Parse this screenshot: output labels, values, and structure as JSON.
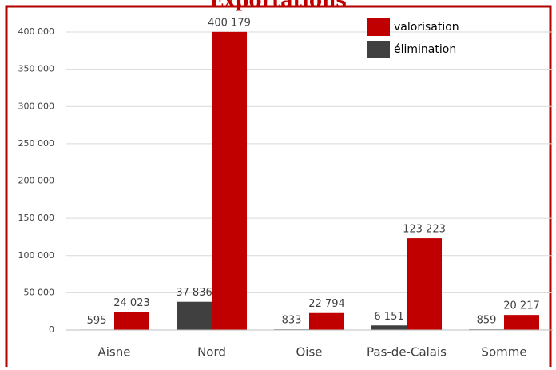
{
  "chart_data": {
    "type": "bar",
    "title": "Exportations",
    "categories": [
      "Aisne",
      "Nord",
      "Oise",
      "Pas-de-Calais",
      "Somme"
    ],
    "series": [
      {
        "name": "valorisation",
        "color": "#c00000",
        "values": [
          24023,
          400179,
          22794,
          123223,
          20217
        ],
        "value_labels": [
          "24 023",
          "400 179",
          "22 794",
          "123 223",
          "20 217"
        ]
      },
      {
        "name": "élimination",
        "color": "#404040",
        "values": [
          595,
          37836,
          833,
          6151,
          859
        ],
        "value_labels": [
          "595",
          "37 836",
          "833",
          "6 151",
          "859"
        ]
      }
    ],
    "ylim": [
      0,
      400000
    ],
    "yticks": [
      0,
      {
        "value": 50000,
        "label": "50 000"
      },
      {
        "value": 100000,
        "label": "100 000"
      },
      {
        "value": 150000,
        "label": "150 000"
      },
      {
        "value": 200000,
        "label": "200 000"
      },
      {
        "value": 250000,
        "label": "250 000"
      },
      {
        "value": 300000,
        "label": "300 000"
      },
      {
        "value": 350000,
        "label": "350 000"
      },
      {
        "value": 400000,
        "label": "400 000"
      }
    ],
    "grid": true,
    "legend": "top-right"
  }
}
